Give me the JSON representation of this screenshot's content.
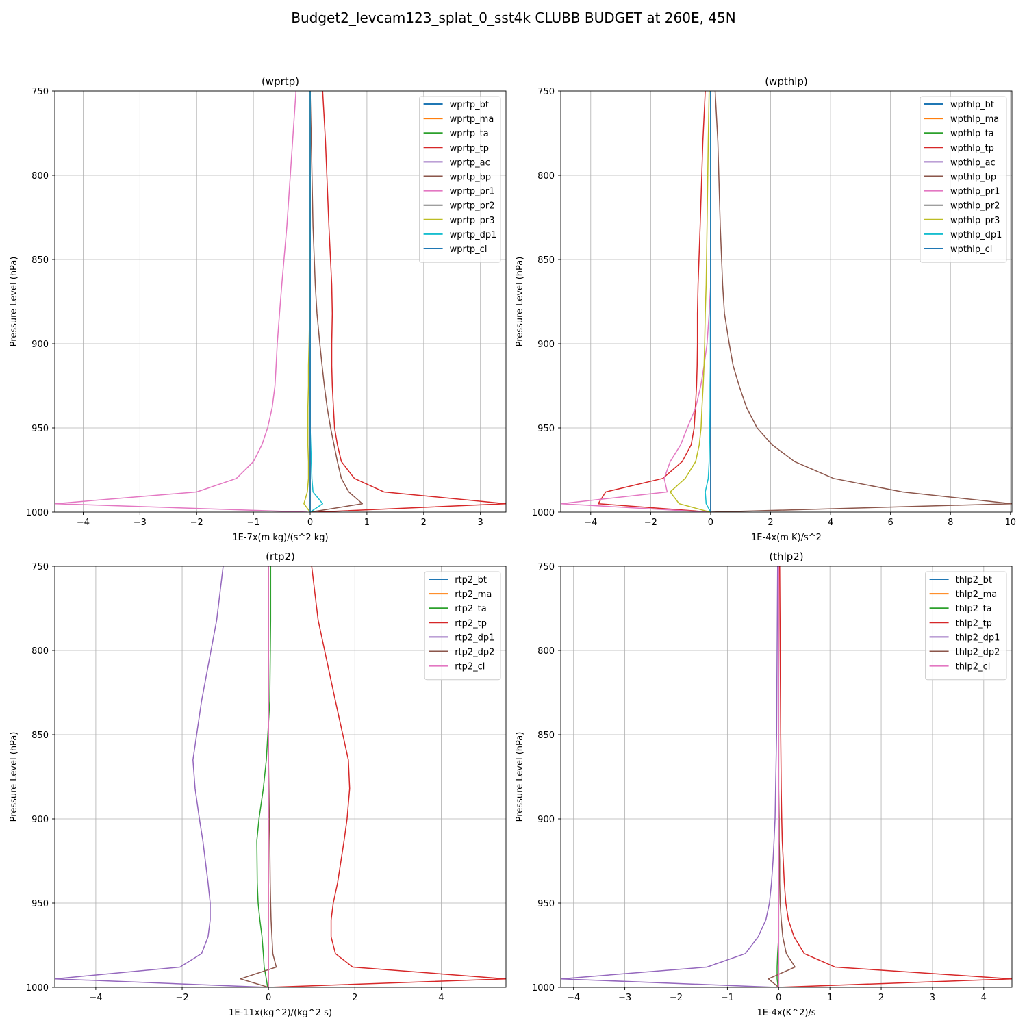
{
  "figure": {
    "suptitle": "Budget2_levcam123_splat_0_sst4k CLUBB BUDGET at 260E, 45N"
  },
  "chart_data": [
    {
      "type": "line",
      "title": "(wprtp)",
      "xlabel": "1E-7x(m kg)/(s^2 kg)",
      "ylabel": "Pressure Level (hPa)",
      "xlim": [
        -4.5,
        3.45
      ],
      "ylim": [
        1000,
        750
      ],
      "xticks": [
        -4,
        -3,
        -2,
        -1,
        0,
        1,
        2,
        3
      ],
      "yticks": [
        750,
        800,
        850,
        900,
        950,
        1000
      ],
      "grid": true,
      "legend_position": "top-right",
      "pressure_levels": [
        750,
        780,
        830,
        865,
        882,
        900,
        913,
        925,
        938,
        950,
        960,
        970,
        980,
        988,
        995,
        1000
      ],
      "series": [
        {
          "name": "wprtp_bt",
          "color": "#1f77b4",
          "values": [
            0,
            0,
            0,
            0,
            0,
            0,
            0,
            0,
            0,
            0,
            0,
            0,
            0,
            0,
            0,
            0
          ]
        },
        {
          "name": "wprtp_ma",
          "color": "#ff7f0e",
          "values": [
            0,
            0,
            0,
            0,
            0,
            0,
            0,
            0,
            0,
            0,
            0,
            0,
            0,
            0,
            0,
            0
          ]
        },
        {
          "name": "wprtp_ta",
          "color": "#2ca02c",
          "values": [
            0,
            0,
            0,
            0,
            0,
            0,
            0,
            0,
            0,
            0,
            0,
            0,
            0,
            0,
            0,
            0
          ]
        },
        {
          "name": "wprtp_tp",
          "color": "#d62728",
          "values": [
            0.22,
            0.27,
            0.33,
            0.38,
            0.39,
            0.38,
            0.38,
            0.39,
            0.41,
            0.43,
            0.48,
            0.55,
            0.78,
            1.3,
            3.45,
            0.1
          ]
        },
        {
          "name": "wprtp_ac",
          "color": "#9467bd",
          "values": [
            0,
            0,
            0,
            0,
            0,
            0,
            0,
            0,
            0,
            0,
            0,
            0,
            0,
            0,
            0,
            0
          ]
        },
        {
          "name": "wprtp_bp",
          "color": "#8c564b",
          "values": [
            0.0,
            0.02,
            0.05,
            0.09,
            0.12,
            0.17,
            0.21,
            0.25,
            0.3,
            0.36,
            0.42,
            0.48,
            0.55,
            0.68,
            0.92,
            0.0
          ]
        },
        {
          "name": "wprtp_pr1",
          "color": "#e377c2",
          "values": [
            -0.25,
            -0.31,
            -0.41,
            -0.5,
            -0.54,
            -0.58,
            -0.6,
            -0.62,
            -0.67,
            -0.75,
            -0.85,
            -1.0,
            -1.3,
            -2.0,
            -4.5,
            -0.05
          ]
        },
        {
          "name": "wprtp_pr2",
          "color": "#7f7f7f",
          "values": [
            0,
            0,
            0,
            0,
            0,
            0,
            0,
            0,
            0,
            0,
            0,
            0,
            0,
            0,
            0,
            0
          ]
        },
        {
          "name": "wprtp_pr3",
          "color": "#bcbd22",
          "values": [
            0,
            0,
            0,
            -0.01,
            -0.01,
            -0.02,
            -0.03,
            -0.03,
            -0.04,
            -0.04,
            -0.04,
            -0.03,
            -0.03,
            -0.05,
            -0.11,
            0.0
          ]
        },
        {
          "name": "wprtp_dp1",
          "color": "#17becf",
          "values": [
            0,
            0,
            0,
            0,
            0,
            0,
            0,
            0,
            0,
            0,
            0.01,
            0.02,
            0.03,
            0.05,
            0.22,
            0.0
          ]
        },
        {
          "name": "wprtp_cl",
          "color": "#1f77b4",
          "values": [
            0,
            0,
            0,
            0,
            0,
            0,
            0,
            0,
            0,
            0,
            0,
            0,
            0,
            0,
            0,
            0
          ]
        }
      ]
    },
    {
      "type": "line",
      "title": "(wpthlp)",
      "xlabel": "1E-4x(m K)/s^2",
      "ylabel": "Pressure Level (hPa)",
      "xlim": [
        -5.0,
        10.05
      ],
      "ylim": [
        1000,
        750
      ],
      "xticks": [
        -4,
        -2,
        0,
        2,
        4,
        6,
        8,
        10
      ],
      "yticks": [
        750,
        800,
        850,
        900,
        950,
        1000
      ],
      "grid": true,
      "legend_position": "top-right",
      "pressure_levels": [
        750,
        780,
        830,
        865,
        882,
        900,
        913,
        925,
        938,
        950,
        960,
        970,
        980,
        988,
        995,
        1000
      ],
      "series": [
        {
          "name": "wpthlp_bt",
          "color": "#1f77b4",
          "values": [
            0,
            0,
            0,
            0,
            0,
            0,
            0,
            0,
            0,
            0,
            0,
            0,
            0,
            0,
            0,
            0
          ]
        },
        {
          "name": "wpthlp_ma",
          "color": "#ff7f0e",
          "values": [
            0,
            0,
            0,
            0,
            0,
            0,
            0,
            0,
            0,
            0,
            0,
            0,
            0,
            0,
            0,
            0
          ]
        },
        {
          "name": "wpthlp_ta",
          "color": "#2ca02c",
          "values": [
            0,
            0,
            0,
            0,
            0,
            0,
            0,
            0,
            0,
            0,
            0,
            0,
            0,
            0,
            0,
            0
          ]
        },
        {
          "name": "wpthlp_tp",
          "color": "#d62728",
          "values": [
            -0.18,
            -0.26,
            -0.35,
            -0.42,
            -0.44,
            -0.44,
            -0.45,
            -0.47,
            -0.51,
            -0.55,
            -0.65,
            -0.95,
            -1.6,
            -3.5,
            -3.75,
            0.0
          ]
        },
        {
          "name": "wpthlp_ac",
          "color": "#9467bd",
          "values": [
            0,
            0,
            0,
            0,
            0,
            0,
            0,
            0,
            0,
            0,
            0,
            0,
            0,
            0,
            0,
            0
          ]
        },
        {
          "name": "wpthlp_bp",
          "color": "#8c564b",
          "values": [
            0.15,
            0.24,
            0.32,
            0.4,
            0.46,
            0.62,
            0.75,
            0.95,
            1.2,
            1.55,
            2.05,
            2.8,
            4.1,
            6.4,
            10.05,
            0.0
          ]
        },
        {
          "name": "wpthlp_pr1",
          "color": "#e377c2",
          "values": [
            0,
            0,
            0,
            0,
            -0.05,
            -0.12,
            -0.22,
            -0.33,
            -0.5,
            -0.78,
            -1.0,
            -1.35,
            -1.55,
            -1.45,
            -5.0,
            -0.1
          ]
        },
        {
          "name": "wpthlp_pr2",
          "color": "#7f7f7f",
          "values": [
            0,
            0,
            0,
            0,
            0,
            0,
            0,
            0,
            0,
            0,
            0,
            0,
            0,
            0,
            0,
            0
          ]
        },
        {
          "name": "wpthlp_pr3",
          "color": "#bcbd22",
          "values": [
            -0.05,
            -0.08,
            -0.12,
            -0.15,
            -0.18,
            -0.2,
            -0.22,
            -0.25,
            -0.29,
            -0.32,
            -0.38,
            -0.5,
            -0.85,
            -1.35,
            -1.05,
            -0.02
          ]
        },
        {
          "name": "wpthlp_dp1",
          "color": "#17becf",
          "values": [
            0,
            0,
            0,
            0,
            -0.01,
            -0.01,
            -0.01,
            -0.02,
            -0.02,
            -0.03,
            -0.04,
            -0.05,
            -0.08,
            -0.18,
            -0.15,
            0.0
          ]
        },
        {
          "name": "wpthlp_cl",
          "color": "#1f77b4",
          "values": [
            0,
            0,
            0,
            0,
            0,
            0,
            0,
            0,
            0,
            0,
            0,
            0,
            0,
            0,
            0,
            0
          ]
        }
      ]
    },
    {
      "type": "line",
      "title": "(rtp2)",
      "xlabel": "1E-11x(kg^2)/(kg^2 s)",
      "ylabel": "Pressure Level (hPa)",
      "xlim": [
        -4.95,
        5.5
      ],
      "ylim": [
        1000,
        750
      ],
      "xticks": [
        -4,
        -2,
        0,
        2,
        4
      ],
      "yticks": [
        750,
        800,
        850,
        900,
        950,
        1000
      ],
      "grid": true,
      "legend_position": "top-right",
      "pressure_levels": [
        750,
        782,
        830,
        865,
        882,
        900,
        913,
        938,
        950,
        960,
        970,
        980,
        988,
        995,
        1000
      ],
      "series": [
        {
          "name": "rtp2_bt",
          "color": "#1f77b4",
          "values": [
            0,
            0,
            0,
            0,
            0,
            0,
            0,
            0,
            0,
            0,
            0,
            0,
            0,
            0,
            0
          ]
        },
        {
          "name": "rtp2_ma",
          "color": "#ff7f0e",
          "values": [
            0,
            0,
            0,
            0,
            0,
            0,
            0,
            0,
            0,
            0,
            0,
            0,
            0,
            0,
            0
          ]
        },
        {
          "name": "rtp2_ta",
          "color": "#2ca02c",
          "values": [
            0.05,
            0.05,
            0.03,
            -0.05,
            -0.12,
            -0.22,
            -0.27,
            -0.26,
            -0.24,
            -0.2,
            -0.15,
            -0.12,
            -0.1,
            -0.05,
            -0.02
          ]
        },
        {
          "name": "rtp2_tp",
          "color": "#d62728",
          "values": [
            1.0,
            1.15,
            1.55,
            1.85,
            1.88,
            1.82,
            1.75,
            1.6,
            1.5,
            1.45,
            1.45,
            1.55,
            1.95,
            5.5,
            0.0
          ]
        },
        {
          "name": "rtp2_dp1",
          "color": "#9467bd",
          "values": [
            -1.05,
            -1.2,
            -1.55,
            -1.75,
            -1.7,
            -1.6,
            -1.52,
            -1.4,
            -1.35,
            -1.35,
            -1.4,
            -1.55,
            -2.05,
            -4.95,
            -0.02
          ]
        },
        {
          "name": "rtp2_dp2",
          "color": "#8c564b",
          "values": [
            0,
            0,
            0,
            0,
            0.01,
            0.02,
            0.03,
            0.04,
            0.05,
            0.06,
            0.08,
            0.1,
            0.18,
            -0.65,
            0.0
          ]
        },
        {
          "name": "rtp2_cl",
          "color": "#e377c2",
          "values": [
            0,
            0,
            0,
            0,
            0,
            0,
            0,
            0,
            0,
            0,
            0,
            0,
            0,
            0,
            0
          ]
        }
      ]
    },
    {
      "type": "line",
      "title": "(thlp2)",
      "xlabel": "1E-4x(K^2)/s",
      "ylabel": "Pressure Level (hPa)",
      "xlim": [
        -4.25,
        4.55
      ],
      "ylim": [
        1000,
        750
      ],
      "xticks": [
        -4,
        -3,
        -2,
        -1,
        0,
        1,
        2,
        3,
        4
      ],
      "yticks": [
        750,
        800,
        850,
        900,
        950,
        1000
      ],
      "grid": true,
      "legend_position": "top-right",
      "pressure_levels": [
        750,
        800,
        850,
        882,
        900,
        913,
        925,
        938,
        950,
        960,
        970,
        980,
        988,
        995,
        1000
      ],
      "series": [
        {
          "name": "thlp2_bt",
          "color": "#1f77b4",
          "values": [
            0,
            0,
            0,
            0,
            0,
            0,
            0,
            0,
            0,
            0,
            0,
            0,
            0,
            0,
            0
          ]
        },
        {
          "name": "thlp2_ma",
          "color": "#ff7f0e",
          "values": [
            0,
            0,
            0,
            0,
            0,
            0,
            0,
            0,
            0,
            0,
            0,
            0,
            0,
            0,
            0
          ]
        },
        {
          "name": "thlp2_ta",
          "color": "#2ca02c",
          "values": [
            0,
            0,
            0,
            0,
            0,
            0,
            0,
            0,
            0,
            0,
            0,
            -0.02,
            -0.03,
            -0.03,
            -0.01
          ]
        },
        {
          "name": "thlp2_tp",
          "color": "#d62728",
          "values": [
            0.02,
            0.03,
            0.04,
            0.05,
            0.06,
            0.07,
            0.09,
            0.11,
            0.14,
            0.19,
            0.3,
            0.5,
            1.1,
            4.55,
            0.0
          ]
        },
        {
          "name": "thlp2_dp1",
          "color": "#9467bd",
          "values": [
            -0.02,
            -0.03,
            -0.04,
            -0.06,
            -0.07,
            -0.09,
            -0.11,
            -0.14,
            -0.18,
            -0.25,
            -0.4,
            -0.65,
            -1.4,
            -4.25,
            -0.05
          ]
        },
        {
          "name": "thlp2_dp2",
          "color": "#8c564b",
          "values": [
            0,
            0,
            0,
            0,
            0.01,
            0.01,
            0.02,
            0.02,
            0.03,
            0.05,
            0.08,
            0.15,
            0.32,
            -0.2,
            0.0
          ]
        },
        {
          "name": "thlp2_cl",
          "color": "#e377c2",
          "values": [
            0,
            0,
            0,
            0,
            0,
            0,
            0,
            0,
            0,
            0,
            0,
            0,
            0,
            0,
            0
          ]
        }
      ]
    }
  ]
}
